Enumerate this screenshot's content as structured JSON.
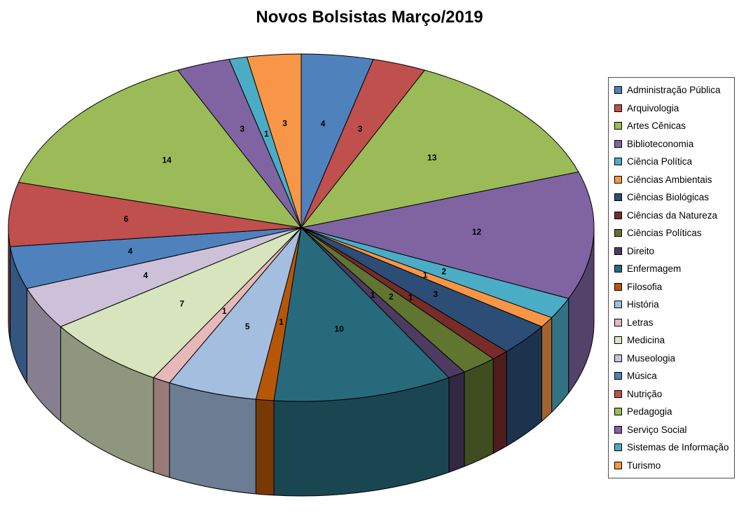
{
  "title": "Novos Bolsistas Março/2019",
  "chart_data": {
    "type": "pie",
    "effect": "3d",
    "title": "Novos Bolsistas Março/2019",
    "legend_position": "right",
    "data_labels": "values",
    "start_angle_deg": 0,
    "direction": "clockwise",
    "total": 101,
    "categories": [
      "Administração Pública",
      "Arquivologia",
      "Artes Cênicas",
      "Biblioteconomia",
      "Ciência Política",
      "Ciências Ambientais",
      "Ciências Biológicas",
      "Ciências da Natureza",
      "Ciências Políticas",
      "Direito",
      "Enfermagem",
      "Filosofia",
      "História",
      "Letras",
      "Medicina",
      "Museologia",
      "Música",
      "Nutrição",
      "Pedagogia",
      "Serviço Social",
      "Sistemas de Informação",
      "Turismo"
    ],
    "values": [
      4,
      3,
      13,
      12,
      2,
      1,
      3,
      1,
      2,
      1,
      10,
      1,
      5,
      1,
      7,
      4,
      4,
      6,
      14,
      3,
      1,
      3
    ],
    "colors": [
      "#4F81BD",
      "#C0504D",
      "#9BBB59",
      "#8064A2",
      "#4BACC6",
      "#F79646",
      "#2C4D75",
      "#772C2A",
      "#5F7530",
      "#4D3B62",
      "#276A7C",
      "#B65708",
      "#A3BEDF",
      "#E6B9B8",
      "#D7E4BD",
      "#CCC1D9",
      "#4F81BD",
      "#C0504D",
      "#9BBB59",
      "#8064A2",
      "#4BACC6",
      "#F79646"
    ],
    "background_color": "#FFFFFF",
    "slice_border_color": "#000000"
  }
}
